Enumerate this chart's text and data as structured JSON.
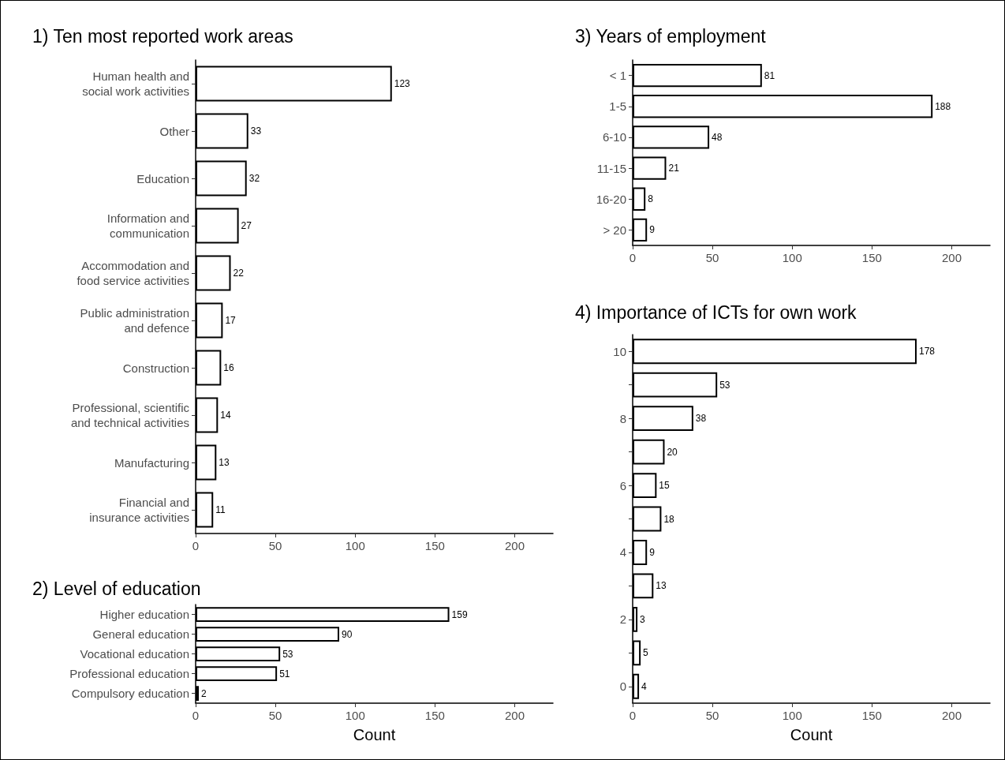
{
  "chart_data": [
    {
      "type": "bar",
      "orientation": "horizontal",
      "title": "1) Ten most reported work areas",
      "categories": [
        "Human health and\nsocial work activities",
        "Other",
        "Education",
        "Information and\ncommunication",
        "Accommodation and\nfood service activities",
        "Public administration\nand defence",
        "Construction",
        "Professional, scientific\nand technical activities",
        "Manufacturing",
        "Financial and\ninsurance activities"
      ],
      "values": [
        123,
        33,
        32,
        27,
        22,
        17,
        16,
        14,
        13,
        11
      ],
      "color": "#ffffff",
      "xlim": [
        0,
        224
      ],
      "xticks": [
        0,
        50,
        100,
        150,
        200
      ],
      "data_labels": true
    },
    {
      "type": "bar",
      "orientation": "horizontal",
      "title": "2) Level of education",
      "xlabel": "Count",
      "categories": [
        "Higher education",
        "General education",
        "Vocational education",
        "Professional education",
        "Compulsory education"
      ],
      "values": [
        159,
        90,
        53,
        51,
        2
      ],
      "color": "#ffffff",
      "xlim": [
        0,
        224
      ],
      "xticks": [
        0,
        50,
        100,
        150,
        200
      ],
      "data_labels": true
    },
    {
      "type": "bar",
      "orientation": "horizontal",
      "title": "3) Years of employment",
      "categories": [
        "< 1",
        "1-5",
        "6-10",
        "11-15",
        "16-20",
        "> 20"
      ],
      "values": [
        81,
        188,
        48,
        21,
        8,
        9
      ],
      "color": "#ffffff",
      "xlim": [
        0,
        224
      ],
      "xticks": [
        0,
        50,
        100,
        150,
        200
      ],
      "data_labels": true
    },
    {
      "type": "bar",
      "orientation": "horizontal",
      "title": "4) Importance of ICTs for own work",
      "xlabel": "Count",
      "categories": [
        "10",
        null,
        "8",
        null,
        "6",
        null,
        "4",
        null,
        "2",
        null,
        "0"
      ],
      "values": [
        178,
        53,
        38,
        20,
        15,
        18,
        9,
        13,
        3,
        5,
        4
      ],
      "color": "#ffffff",
      "xlim": [
        0,
        224
      ],
      "xticks": [
        0,
        50,
        100,
        150,
        200
      ],
      "data_labels": true
    }
  ]
}
